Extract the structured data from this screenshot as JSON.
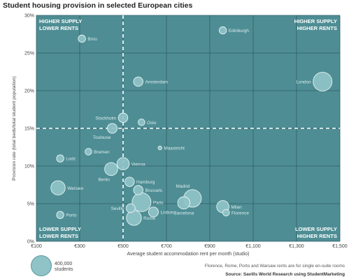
{
  "title": "Student housing provision in selected European cities",
  "chart_data": {
    "type": "scatter",
    "xlabel": "Average student accommodation rent per month (studio)",
    "ylabel": "Provision rate (total beds/total student population)",
    "xlim": [
      100,
      1500
    ],
    "ylim": [
      0,
      30
    ],
    "x_ticks": [
      "€100",
      "€300",
      "€500",
      "€700",
      "€900",
      "€1,100",
      "€1,300",
      "€1,500"
    ],
    "y_ticks": [
      "0%",
      "5%",
      "10%",
      "15%",
      "20%",
      "25%",
      "30%"
    ],
    "reference_lines": {
      "x": 500,
      "y": 15
    },
    "quadrants": {
      "top_left": [
        "HIGHER SUPPLY",
        "LOWER RENTS"
      ],
      "top_right": [
        "HIGHER SUPPLY",
        "HIGHER RENTS"
      ],
      "bottom_left": [
        "LOWER SUPPLY",
        "LOWER RENTS"
      ],
      "bottom_right": [
        "LOWER SUPPLY",
        "HIGHER RENTS"
      ]
    },
    "points": [
      {
        "city": "Brno",
        "x": 310,
        "y": 26.9,
        "students": 60000
      },
      {
        "city": "Edinburgh",
        "x": 960,
        "y": 28.0,
        "students": 60000
      },
      {
        "city": "Amsterdam",
        "x": 570,
        "y": 21.2,
        "students": 100000
      },
      {
        "city": "London",
        "x": 1420,
        "y": 21.2,
        "students": 400000
      },
      {
        "city": "Stockholm",
        "x": 500,
        "y": 16.4,
        "students": 100000
      },
      {
        "city": "Oslo",
        "x": 585,
        "y": 15.8,
        "students": 50000
      },
      {
        "city": "Toulouse",
        "x": 450,
        "y": 15.0,
        "students": 110000
      },
      {
        "city": "Maastricht",
        "x": 670,
        "y": 12.4,
        "students": 16000
      },
      {
        "city": "Bremen",
        "x": 340,
        "y": 11.9,
        "students": 50000
      },
      {
        "city": "Lodz",
        "x": 210,
        "y": 11.0,
        "students": 60000
      },
      {
        "city": "Vienna",
        "x": 500,
        "y": 10.3,
        "students": 170000
      },
      {
        "city": "Berlin",
        "x": 445,
        "y": 9.6,
        "students": 190000
      },
      {
        "city": "Hamburg",
        "x": 530,
        "y": 7.9,
        "students": 100000
      },
      {
        "city": "Brussels",
        "x": 570,
        "y": 6.8,
        "students": 100000
      },
      {
        "city": "Warsaw",
        "x": 200,
        "y": 7.1,
        "students": 230000
      },
      {
        "city": "Madrid",
        "x": 820,
        "y": 5.7,
        "students": 350000
      },
      {
        "city": "Milan",
        "x": 960,
        "y": 4.6,
        "students": 170000
      },
      {
        "city": "Barcelona",
        "x": 780,
        "y": 5.1,
        "students": 170000
      },
      {
        "city": "Paris",
        "x": 585,
        "y": 5.2,
        "students": 400000
      },
      {
        "city": "Seville",
        "x": 535,
        "y": 4.4,
        "students": 90000
      },
      {
        "city": "Lisbon",
        "x": 640,
        "y": 3.9,
        "students": 110000
      },
      {
        "city": "Florence",
        "x": 975,
        "y": 3.8,
        "students": 50000
      },
      {
        "city": "Porto",
        "x": 210,
        "y": 3.5,
        "students": 60000
      },
      {
        "city": "Rome",
        "x": 550,
        "y": 3.1,
        "students": 250000
      }
    ],
    "legend": {
      "value": "400,000",
      "unit": "students",
      "students": 400000
    },
    "colors": {
      "background": "#4e8d94",
      "grid": "#2f5e63",
      "reference": "#ffffff",
      "bubble_fill": "#8fc3c8",
      "bubble_stroke": "#e6f3f4",
      "label": "#dcecee"
    }
  },
  "footnote": "Florence, Rome, Porto and Warsaw rents are for single en-suite rooms",
  "source": "Source: Savills World Research using StudentMarketing"
}
